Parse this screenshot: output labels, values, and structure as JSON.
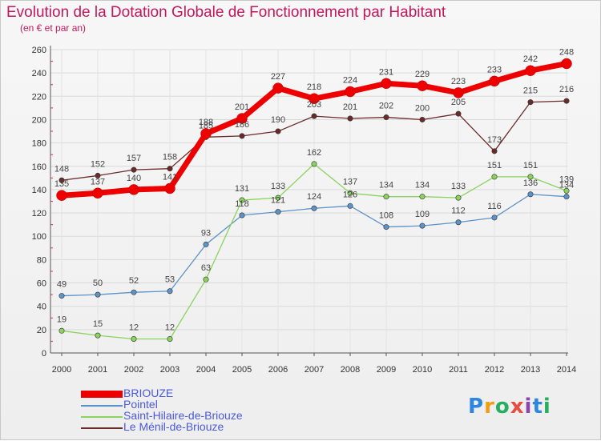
{
  "chart_data": {
    "type": "line",
    "title": "Evolution de la Dotation Globale de Fonctionnement par Habitant",
    "subtitle": "(en € et par an)",
    "xlabel": "",
    "ylabel": "",
    "categories": [
      "2000",
      "2001",
      "2002",
      "2003",
      "2004",
      "2005",
      "2006",
      "2007",
      "2008",
      "2009",
      "2010",
      "2011",
      "2012",
      "2013",
      "2014"
    ],
    "ylim": [
      0,
      260
    ],
    "yticks": [
      0,
      20,
      40,
      60,
      80,
      100,
      120,
      140,
      160,
      180,
      200,
      220,
      240,
      260
    ],
    "grid": true,
    "series": [
      {
        "name": "BRIOUZE",
        "color": "#ee0000",
        "values": [
          135,
          137,
          140,
          141,
          188,
          201,
          227,
          218,
          224,
          231,
          229,
          223,
          233,
          242,
          248
        ]
      },
      {
        "name": "Pointel",
        "color": "#5c93c8",
        "values": [
          49,
          50,
          52,
          53,
          93,
          118,
          121,
          124,
          126,
          108,
          109,
          112,
          116,
          136,
          134
        ]
      },
      {
        "name": "Saint-Hilaire-de-Briouze",
        "color": "#8bd35d",
        "values": [
          19,
          15,
          12,
          12,
          63,
          131,
          133,
          162,
          137,
          134,
          134,
          133,
          151,
          151,
          139
        ]
      },
      {
        "name": "Le Ménil-de-Briouze",
        "color": "#6b2a2a",
        "values": [
          148,
          152,
          157,
          158,
          185,
          186,
          190,
          203,
          201,
          202,
          200,
          205,
          173,
          215,
          216
        ]
      }
    ]
  },
  "logo": {
    "text": "Proxiti"
  }
}
